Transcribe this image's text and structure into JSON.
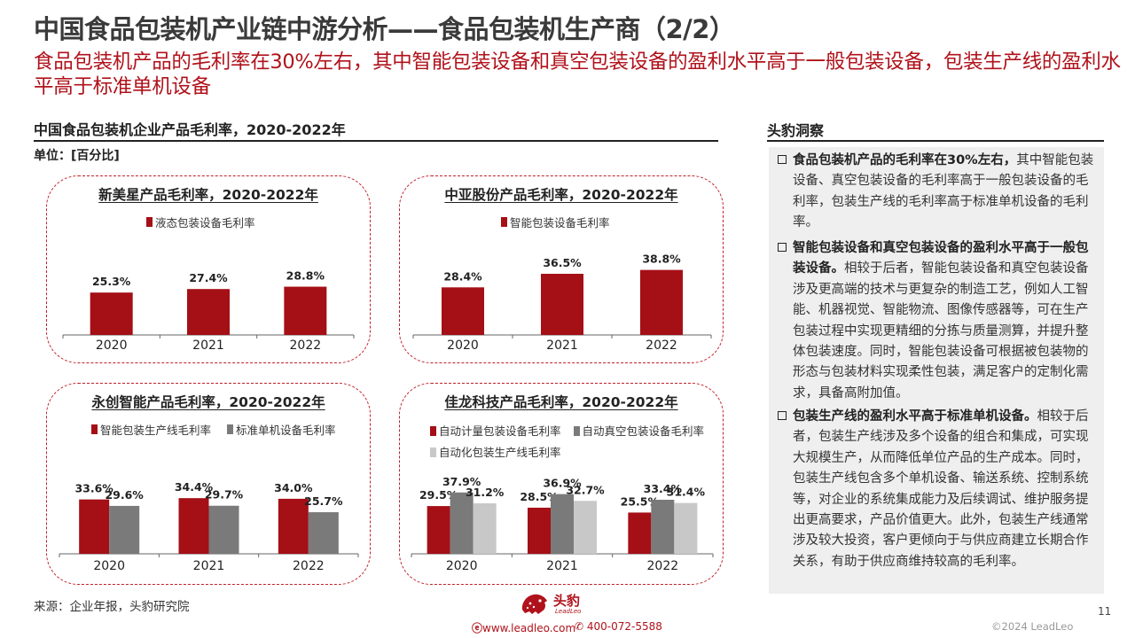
{
  "title": "中国食品包装机产业链中游分析——食品包装机生产商（2/2）",
  "subtitle": "食品包装机产品的毛利率在30%左右，其中智能包装设备和真空包装设备的盈利水平高于一般包装设备，包装生产线的盈利水平高于标准单机设备",
  "left_heading": "中国食品包装机企业产品毛利率，2020-2022年",
  "unit": "单位：[百分比]",
  "right_heading": "头豹洞察",
  "colors": {
    "red": "#a50f16",
    "dark_gray": "#7a7a7a",
    "light_gray": "#c8c8c8",
    "accent": "#b0121b"
  },
  "chart_data": [
    {
      "type": "bar",
      "title": "新美星产品毛利率，2020-2022年",
      "categories": [
        "2020",
        "2021",
        "2022"
      ],
      "series": [
        {
          "name": "液态包装设备毛利率",
          "values": [
            25.3,
            27.4,
            28.8
          ],
          "labels": [
            "25.3%",
            "27.4%",
            "28.8%"
          ],
          "color": "#a50f16"
        }
      ],
      "ylim": [
        0,
        55
      ],
      "legend": "top"
    },
    {
      "type": "bar",
      "title": "中亚股份产品毛利率，2020-2022年",
      "categories": [
        "2020",
        "2021",
        "2022"
      ],
      "series": [
        {
          "name": "智能包装设备毛利率",
          "values": [
            28.4,
            36.5,
            38.8
          ],
          "labels": [
            "28.4%",
            "36.5%",
            "38.8%"
          ],
          "color": "#a50f16"
        }
      ],
      "ylim": [
        0,
        55
      ],
      "legend": "top"
    },
    {
      "type": "bar",
      "title": "永创智能产品毛利率，2020-2022年",
      "categories": [
        "2020",
        "2021",
        "2022"
      ],
      "series": [
        {
          "name": "智能包装生产线毛利率",
          "values": [
            33.6,
            34.4,
            34.0
          ],
          "labels": [
            "33.6%",
            "34.4%",
            "34.0%"
          ],
          "color": "#a50f16"
        },
        {
          "name": "标准单机设备毛利率",
          "values": [
            29.6,
            29.7,
            25.7
          ],
          "labels": [
            "29.6%",
            "29.7%",
            "25.7%"
          ],
          "color": "#7a7a7a"
        }
      ],
      "ylim": [
        0,
        75
      ],
      "legend": "top"
    },
    {
      "type": "bar",
      "title": "佳龙科技产品毛利率，2020-2022年",
      "categories": [
        "2020",
        "2021",
        "2022"
      ],
      "series": [
        {
          "name": "自动计量包装设备毛利率",
          "values": [
            29.5,
            28.5,
            25.5
          ],
          "labels": [
            "29.5%",
            "28.5%",
            "25.5%"
          ],
          "color": "#a50f16"
        },
        {
          "name": "自动真空包装设备毛利率",
          "values": [
            37.9,
            36.9,
            33.4
          ],
          "labels": [
            "37.9%",
            "36.9%",
            "33.4%"
          ],
          "color": "#7a7a7a"
        },
        {
          "name": "自动化包装生产线毛利率",
          "values": [
            31.2,
            32.7,
            31.4
          ],
          "labels": [
            "31.2%",
            "32.7%",
            "31.4%"
          ],
          "color": "#c8c8c8"
        }
      ],
      "ylim": [
        0,
        75
      ],
      "legend": "top"
    }
  ],
  "insights": [
    {
      "bold": "食品包装机产品的毛利率在30%左右，",
      "text": "其中智能包装设备、真空包装设备的毛利率高于一般包装设备的毛利率，包装生产线的毛利率高于标准单机设备的毛利率。"
    },
    {
      "bold": "智能包装设备和真空包装设备的盈利水平高于一般包装设备。",
      "text": "相较于后者，智能包装设备和真空包装设备涉及更高端的技术与更复杂的制造工艺，例如人工智能、机器视觉、智能物流、图像传感器等，可在生产包装过程中实现更精细的分拣与质量测算，并提升整体包装速度。同时，智能包装设备可根据被包装物的形态与包装材料实现柔性包装，满足客户的定制化需求，具备高附加值。"
    },
    {
      "bold": "包装生产线的盈利水平高于标准单机设备。",
      "text": "相较于后者，包装生产线涉及多个设备的组合和集成，可实现大规模生产，从而降低单位产品的生产成本。同时，包装生产线包含多个单机设备、输送系统、控制系统等，对企业的系统集成能力及后续调试、维护服务提出更高要求，产品价值更大。此外，包装生产线通常涉及较大投资，客户更倾向于与供应商建立长期合作关系，有助于供应商维持较高的毛利率。"
    }
  ],
  "source": "来源：企业年报，头豹研究院",
  "page_number": "11",
  "copyright": "©2024 LeadLeo",
  "footer": {
    "logo_name": "头豹",
    "logo_sub": "LeadLeo",
    "website": "www.leadleo.com",
    "phone": "400-072-5588"
  }
}
